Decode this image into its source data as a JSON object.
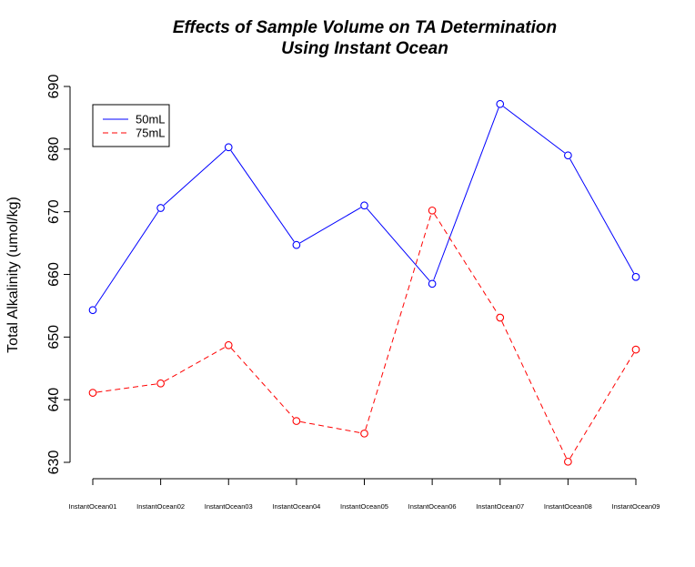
{
  "chart_data": {
    "type": "line",
    "title": [
      "Effects of Sample Volume on TA Determination",
      "Using Instant Ocean"
    ],
    "xlabel": "",
    "ylabel": "Total Alkalinity (umol/kg)",
    "categories": [
      "InstantOcean01",
      "InstantOcean02",
      "InstantOcean03",
      "InstantOcean04",
      "InstantOcean05",
      "InstantOcean06",
      "InstantOcean07",
      "InstantOcean08",
      "InstantOcean09"
    ],
    "ylim": [
      630,
      690
    ],
    "yticks": [
      630,
      640,
      650,
      660,
      670,
      680,
      690
    ],
    "grid": false,
    "legend_position": "top-left",
    "series": [
      {
        "name": "50mL",
        "color": "#0000ff",
        "line_style": "solid",
        "marker": "open-circle",
        "values": [
          654.3,
          670.6,
          680.3,
          664.7,
          671.0,
          658.5,
          687.2,
          679.0,
          659.6
        ]
      },
      {
        "name": "75mL",
        "color": "#ff0000",
        "line_style": "dashed",
        "marker": "open-circle",
        "values": [
          641.1,
          642.6,
          648.7,
          636.6,
          634.6,
          670.2,
          653.1,
          630.1,
          648.0
        ]
      }
    ]
  }
}
